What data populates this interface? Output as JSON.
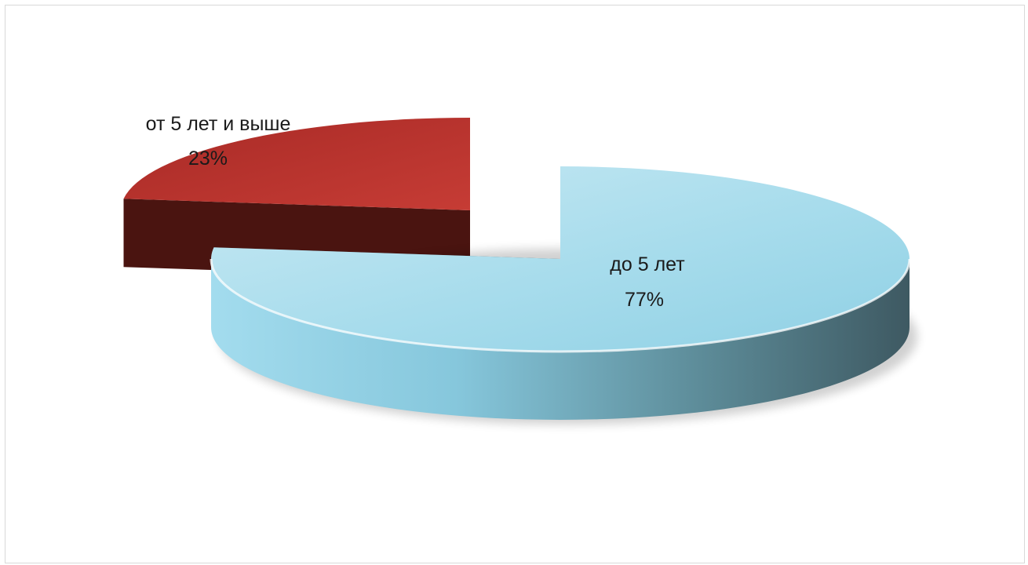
{
  "chart_data": {
    "type": "pie",
    "title": "",
    "style": "3d-exploded",
    "slices": [
      {
        "label": "до 5 лет",
        "value": 77,
        "value_label": "77%",
        "color": "#8fd3e6",
        "side_color": "#3f5a63"
      },
      {
        "label": "от 5 лет и выше",
        "value": 23,
        "value_label": "23%",
        "color": "#b5302c",
        "side_color": "#4a1410"
      }
    ],
    "legend": "none"
  }
}
